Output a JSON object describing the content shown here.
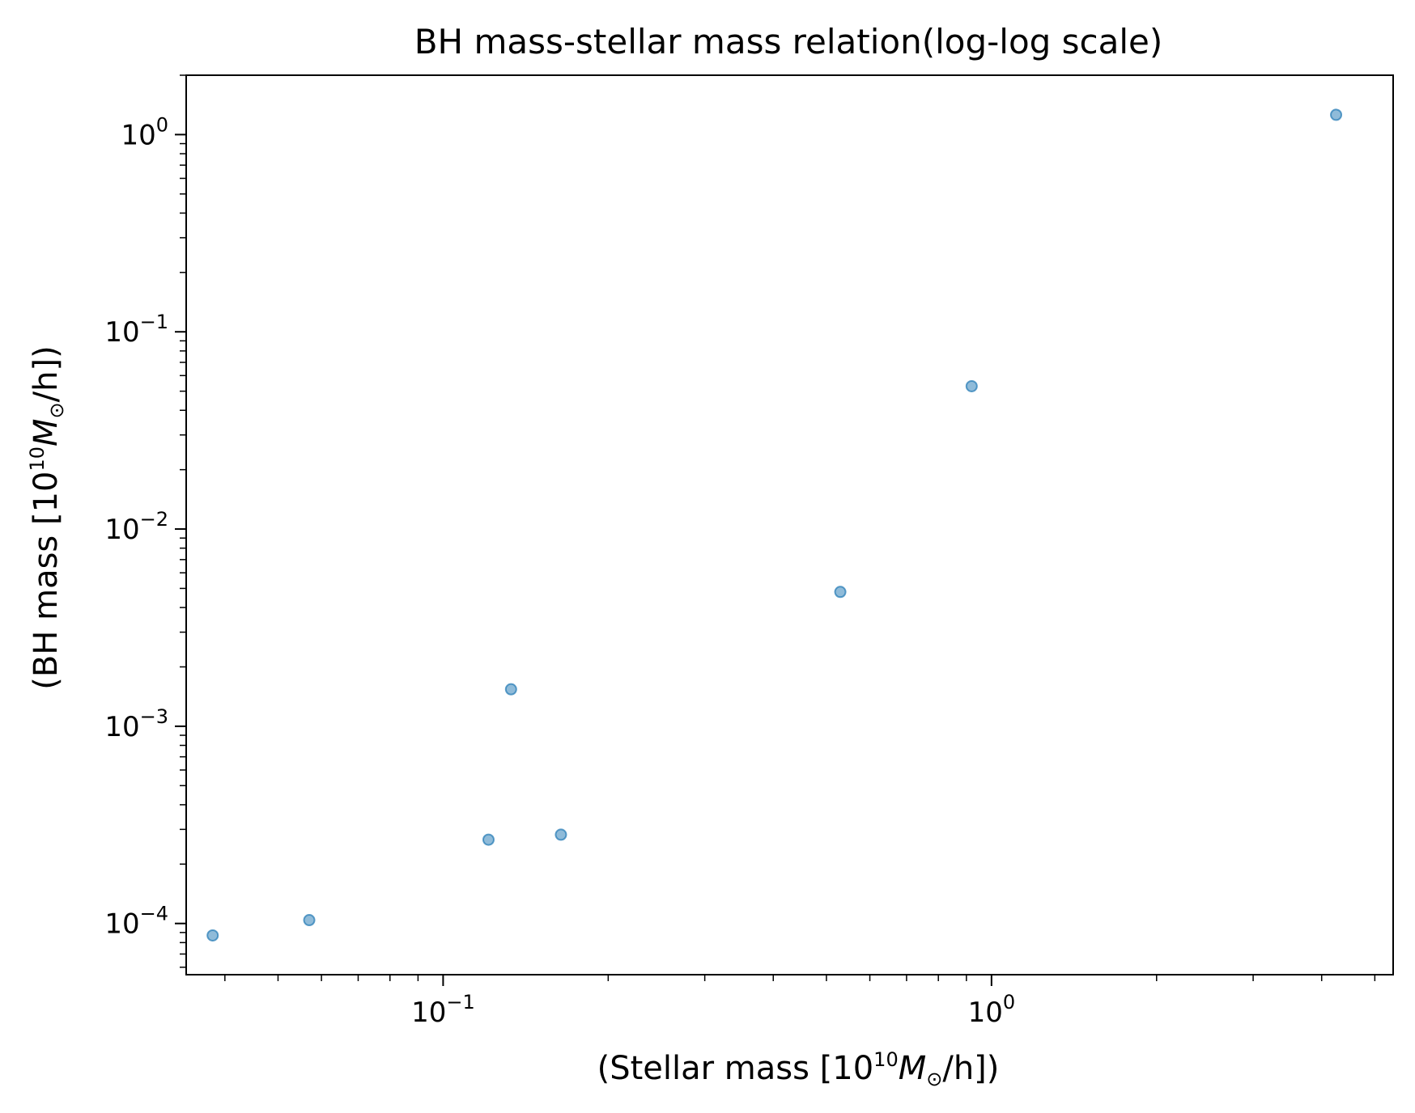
{
  "chart_data": {
    "type": "scatter",
    "title": "BH mass-stellar mass relation(log-log scale)",
    "xlabel": "(Stellar mass [10^10 M⊙/h])",
    "ylabel": "(BH mass [10^10 M⊙/h])",
    "xscale": "log",
    "yscale": "log",
    "xlim": [
      0.034,
      5.4
    ],
    "ylim": [
      5.5e-05,
      2.0
    ],
    "x_ticks": [
      {
        "value": 0.1,
        "base": "10",
        "exp": "−1"
      },
      {
        "value": 1,
        "base": "10",
        "exp": "0"
      }
    ],
    "y_ticks": [
      {
        "value": 0.0001,
        "base": "10",
        "exp": "−4"
      },
      {
        "value": 0.001,
        "base": "10",
        "exp": "−3"
      },
      {
        "value": 0.01,
        "base": "10",
        "exp": "−2"
      },
      {
        "value": 0.1,
        "base": "10",
        "exp": "−1"
      },
      {
        "value": 1,
        "base": "10",
        "exp": "0"
      }
    ],
    "grid": false,
    "points": [
      {
        "x": 0.038,
        "y": 8.7e-05
      },
      {
        "x": 0.057,
        "y": 0.000104
      },
      {
        "x": 0.121,
        "y": 0.000266
      },
      {
        "x": 0.133,
        "y": 0.00154
      },
      {
        "x": 0.164,
        "y": 0.000282
      },
      {
        "x": 0.53,
        "y": 0.0048
      },
      {
        "x": 0.92,
        "y": 0.053
      },
      {
        "x": 4.25,
        "y": 1.26
      }
    ],
    "marker_color": "#1f77b4"
  },
  "labels": {
    "title": "BH mass-stellar mass relation(log-log scale)",
    "x_prefix": "(Stellar mass [10",
    "x_sup": "10",
    "x_M": "M",
    "x_sun": "⊙",
    "x_suffix": "/h])",
    "y_prefix": "(BH mass [10",
    "y_sup": "10",
    "y_M": "M",
    "y_sun": "⊙",
    "y_suffix": "/h])"
  }
}
